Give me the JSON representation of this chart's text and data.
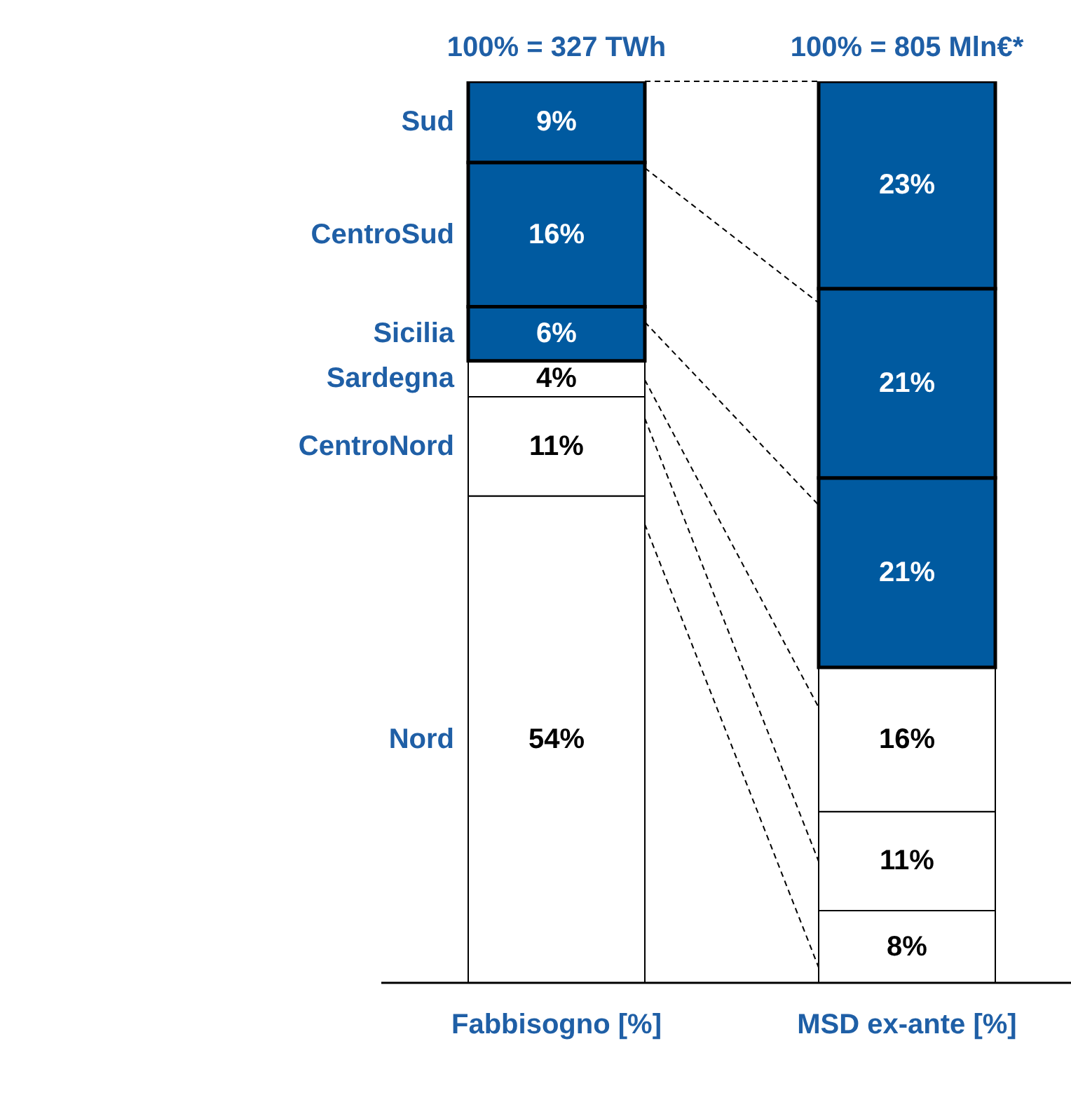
{
  "chart_data": {
    "type": "bar",
    "stacked": true,
    "categories": [
      "Fabbisogno [%]",
      "MSD ex-ante [%]"
    ],
    "series": [
      {
        "name": "Nord",
        "color": "#ffffff",
        "values": [
          54,
          8
        ],
        "value_labels": [
          "54%",
          "8%"
        ]
      },
      {
        "name": "CentroNord",
        "color": "#ffffff",
        "values": [
          11,
          11
        ],
        "value_labels": [
          "11%",
          "11%"
        ]
      },
      {
        "name": "Sardegna",
        "color": "#ffffff",
        "values": [
          4,
          16
        ],
        "value_labels": [
          "4%",
          "16%"
        ]
      },
      {
        "name": "Sicilia",
        "color": "#005aa0",
        "values": [
          6,
          21
        ],
        "value_labels": [
          "6%",
          "21%"
        ]
      },
      {
        "name": "CentroSud",
        "color": "#005aa0",
        "values": [
          16,
          21
        ],
        "value_labels": [
          "16%",
          "21%"
        ]
      },
      {
        "name": "Sud",
        "color": "#005aa0",
        "values": [
          9,
          23
        ],
        "value_labels": [
          "9%",
          "23%"
        ]
      }
    ],
    "annotations": [
      "100% = 327 TWh",
      "100% = 805 Mln€*"
    ],
    "legend": false,
    "grid": false
  }
}
